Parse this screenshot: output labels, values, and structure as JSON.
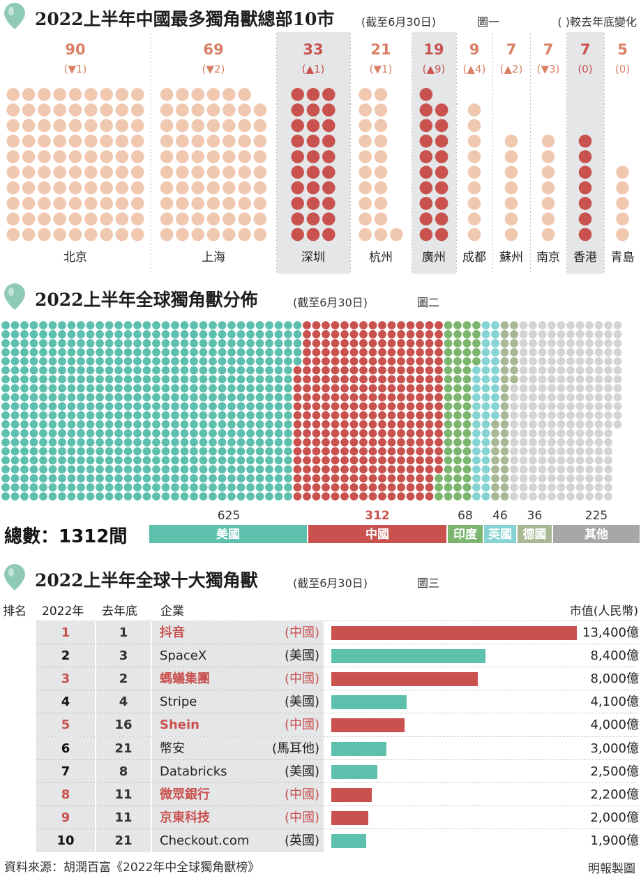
{
  "fig1": {
    "title": "2022上半年中國最多獨角獸總部10市",
    "subtitle": "(截至6月30日)",
    "fig_label": "圖一",
    "legend": "(   )較去年底變化"
  },
  "fig2": {
    "title": "2022上半年全球獨角獸分佈",
    "subtitle": "(截至6月30日)",
    "fig_label": "圖二",
    "total": "總數：1312間"
  },
  "fig3": {
    "title": "2022上半年全球十大獨角獸",
    "subtitle": "(截至6月30日)",
    "fig_label": "圖三",
    "headers": {
      "rank": "排名",
      "year": "2022年",
      "prev": "去年底",
      "company": "企業",
      "value": "市值(人民幣)"
    }
  },
  "colors": {
    "highlight": "#c9524f",
    "light": "#f0c8b0",
    "usa": "#5cc0ad",
    "china": "#c9524f",
    "india": "#7cb66e",
    "uk": "#86d3d3",
    "germany": "#a8b894",
    "other": "#d4d4d4",
    "band": "#e4e6e8"
  },
  "chart_data": [
    {
      "type": "bar",
      "title": "2022上半年中國最多獨角獸總部10市",
      "categories": [
        "北京",
        "上海",
        "深圳",
        "杭州",
        "廣州",
        "成都",
        "蘇州",
        "南京",
        "香港",
        "青島"
      ],
      "values": [
        90,
        69,
        33,
        21,
        19,
        9,
        7,
        7,
        7,
        5
      ],
      "change_labels": [
        "(▼1)",
        "(▼2)",
        "(▲1)",
        "(▼1)",
        "(▲9)",
        "(▲4)",
        "(▲2)",
        "(▼3)",
        "(0)",
        "(0)"
      ],
      "highlighted": [
        "深圳",
        "廣州",
        "香港"
      ]
    },
    {
      "type": "bar",
      "title": "2022上半年全球獨角獸分佈",
      "categories": [
        "美國",
        "中國",
        "印度",
        "英國",
        "德國",
        "其他"
      ],
      "values": [
        625,
        312,
        68,
        46,
        36,
        225
      ],
      "total": 1312
    },
    {
      "type": "bar",
      "title": "2022上半年全球十大獨角獸",
      "unit": "億",
      "rows": [
        {
          "rank": "1",
          "prev": "1",
          "company": "抖音",
          "country": "(中國)",
          "value": 13400,
          "value_label": "13,400億"
        },
        {
          "rank": "2",
          "prev": "3",
          "company": "SpaceX",
          "country": "(美國)",
          "value": 8400,
          "value_label": "8,400億"
        },
        {
          "rank": "3",
          "prev": "2",
          "company": "螞蟻集團",
          "country": "(中國)",
          "value": 8000,
          "value_label": "8,000億"
        },
        {
          "rank": "4",
          "prev": "4",
          "company": "Stripe",
          "country": "(美國)",
          "value": 4100,
          "value_label": "4,100億"
        },
        {
          "rank": "5",
          "prev": "16",
          "company": "Shein",
          "country": "(中國)",
          "value": 4000,
          "value_label": "4,000億"
        },
        {
          "rank": "6",
          "prev": "21",
          "company": "幣安",
          "country": "(馬耳他)",
          "value": 3000,
          "value_label": "3,000億"
        },
        {
          "rank": "7",
          "prev": "8",
          "company": "Databricks",
          "country": "(美國)",
          "value": 2500,
          "value_label": "2,500億"
        },
        {
          "rank": "8",
          "prev": "11",
          "company": "微眾銀行",
          "country": "(中國)",
          "value": 2200,
          "value_label": "2,200億"
        },
        {
          "rank": "9",
          "prev": "11",
          "company": "京東科技",
          "country": "(中國)",
          "value": 2000,
          "value_label": "2,000億"
        },
        {
          "rank": "10",
          "prev": "21",
          "company": "Checkout.com",
          "country": "(英國)",
          "value": 1900,
          "value_label": "1,900億"
        }
      ]
    }
  ],
  "footer": {
    "source": "資料來源：胡潤百富《2022年中全球獨角獸榜》",
    "credit": "明報製圖"
  }
}
